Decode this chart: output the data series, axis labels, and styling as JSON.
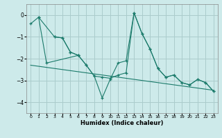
{
  "xlabel": "Humidex (Indice chaleur)",
  "bg_color": "#cdeaea",
  "grid_color": "#aacccc",
  "line_color": "#1a7a6a",
  "xlim": [
    -0.5,
    23.5
  ],
  "ylim": [
    -4.5,
    0.5
  ],
  "yticks": [
    0,
    -1,
    -2,
    -3,
    -4
  ],
  "xticks": [
    0,
    1,
    2,
    3,
    4,
    5,
    6,
    7,
    8,
    9,
    10,
    11,
    12,
    13,
    14,
    15,
    16,
    17,
    18,
    19,
    20,
    21,
    22,
    23
  ],
  "line1_x": [
    0,
    1,
    3,
    4,
    5,
    6,
    7,
    8,
    9,
    10,
    11,
    12,
    13,
    14,
    15,
    16,
    17,
    18,
    19,
    20,
    21,
    22,
    23
  ],
  "line1_y": [
    -0.4,
    -0.1,
    -1.0,
    -1.05,
    -1.7,
    -1.85,
    -2.3,
    -2.8,
    -3.8,
    -2.95,
    -2.2,
    -2.1,
    0.1,
    -0.85,
    -1.55,
    -2.45,
    -2.85,
    -2.75,
    -3.1,
    -3.2,
    -2.95,
    -3.1,
    -3.5
  ],
  "line2_x": [
    1,
    2,
    6
  ],
  "line2_y": [
    -0.1,
    -2.2,
    -1.85
  ],
  "line3_x": [
    0,
    23
  ],
  "line3_y": [
    -2.3,
    -3.45
  ],
  "line4_x": [
    3,
    4,
    5,
    6,
    7,
    8,
    9,
    10,
    11,
    12,
    13,
    14,
    15,
    16,
    17,
    18,
    19,
    20,
    21,
    22,
    23
  ],
  "line4_y": [
    -1.0,
    -1.05,
    -1.7,
    -1.85,
    -2.3,
    -2.8,
    -2.85,
    -2.9,
    -2.75,
    -2.65,
    0.1,
    -0.85,
    -1.55,
    -2.45,
    -2.85,
    -2.75,
    -3.1,
    -3.2,
    -2.95,
    -3.1,
    -3.5
  ]
}
